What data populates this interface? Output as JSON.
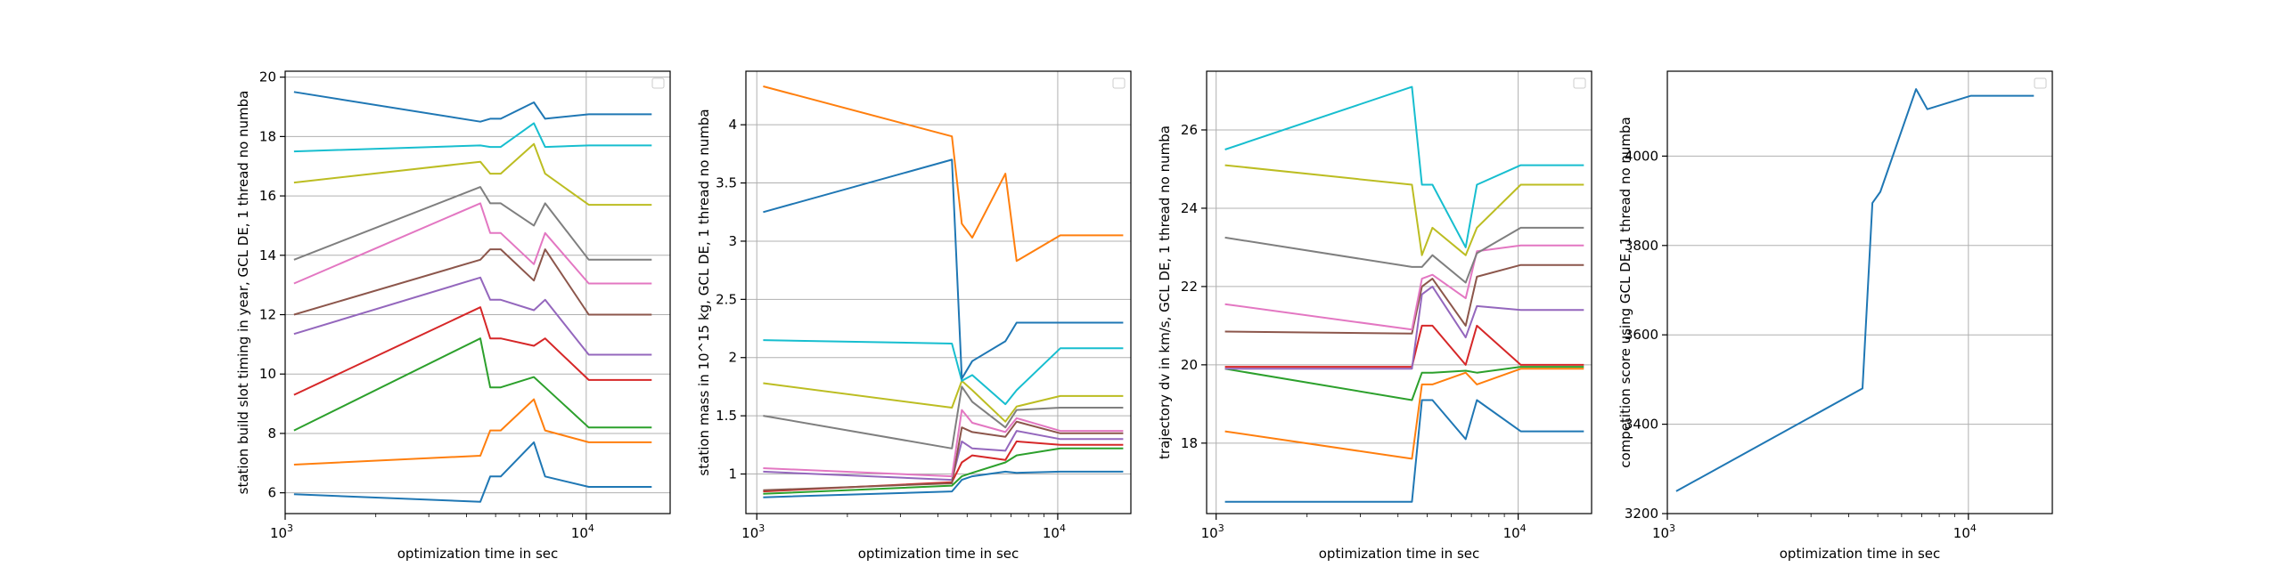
{
  "chart_data": [
    {
      "type": "line",
      "xlabel": "optimization time in sec",
      "ylabel": "station build slot timing in year, GCL DE, 1 thread no numba",
      "xscale": "log",
      "xlim": [
        1000,
        19000
      ],
      "ylim": [
        5.3,
        20.2
      ],
      "xticks": [
        {
          "v": 1000,
          "base": "10",
          "exp": "3"
        },
        {
          "v": 10000,
          "base": "10",
          "exp": "4"
        }
      ],
      "yticks": [
        6,
        8,
        10,
        12,
        14,
        16,
        18,
        20
      ],
      "grid": true,
      "legend": "top-right (empty)",
      "x": [
        1070,
        4450,
        4800,
        5200,
        6700,
        7300,
        10200,
        16500
      ],
      "series": [
        {
          "color": "#1f77b4",
          "values": [
            5.95,
            5.7,
            6.55,
            6.55,
            7.7,
            6.55,
            6.2,
            6.2
          ]
        },
        {
          "color": "#ff7f0e",
          "values": [
            6.95,
            7.25,
            8.1,
            8.1,
            9.15,
            8.1,
            7.7,
            7.7
          ]
        },
        {
          "color": "#2ca02c",
          "values": [
            8.1,
            11.2,
            9.55,
            9.55,
            9.9,
            9.55,
            8.2,
            8.2
          ]
        },
        {
          "color": "#d62728",
          "values": [
            9.3,
            12.25,
            11.2,
            11.2,
            10.95,
            11.2,
            9.8,
            9.8
          ]
        },
        {
          "color": "#9467bd",
          "values": [
            11.35,
            13.25,
            12.5,
            12.5,
            12.15,
            12.5,
            10.65,
            10.65
          ]
        },
        {
          "color": "#8c564b",
          "values": [
            12.0,
            13.85,
            14.2,
            14.2,
            13.15,
            14.2,
            12.0,
            12.0
          ]
        },
        {
          "color": "#e377c2",
          "values": [
            13.05,
            15.75,
            14.75,
            14.75,
            13.7,
            14.75,
            13.05,
            13.05
          ]
        },
        {
          "color": "#7f7f7f",
          "values": [
            13.85,
            16.3,
            15.75,
            15.75,
            15.0,
            15.75,
            13.85,
            13.85
          ]
        },
        {
          "color": "#bcbd22",
          "values": [
            16.45,
            17.15,
            16.75,
            16.75,
            17.75,
            16.75,
            15.7,
            15.7
          ]
        },
        {
          "color": "#17becf",
          "values": [
            17.5,
            17.7,
            17.65,
            17.65,
            18.45,
            17.65,
            17.7,
            17.7
          ]
        },
        {
          "color": "#1f77b4",
          "values": [
            19.5,
            18.5,
            18.6,
            18.6,
            19.15,
            18.6,
            18.75,
            18.75
          ]
        }
      ]
    },
    {
      "type": "line",
      "xlabel": "optimization time in sec",
      "ylabel": "station mass in 10^15 kg, GCL DE, 1 thread no numba",
      "xscale": "log",
      "xlim": [
        920,
        17500
      ],
      "ylim": [
        0.66,
        4.46
      ],
      "xticks": [
        {
          "v": 1000,
          "base": "10",
          "exp": "3"
        },
        {
          "v": 10000,
          "base": "10",
          "exp": "4"
        }
      ],
      "yticks": [
        1.0,
        1.5,
        2.0,
        2.5,
        3.0,
        3.5,
        4.0
      ],
      "grid": true,
      "legend": "top-right (empty)",
      "x": [
        1050,
        4450,
        4800,
        5200,
        6700,
        7300,
        10200,
        16500
      ],
      "series": [
        {
          "color": "#1f77b4",
          "values": [
            0.8,
            0.85,
            0.95,
            0.98,
            1.02,
            1.01,
            1.02,
            1.02
          ]
        },
        {
          "color": "#ff7f0e",
          "values": [
            4.33,
            3.9,
            3.15,
            3.03,
            3.58,
            2.83,
            3.05,
            3.05
          ]
        },
        {
          "color": "#2ca02c",
          "values": [
            0.83,
            0.9,
            0.98,
            1.01,
            1.1,
            1.16,
            1.22,
            1.22
          ]
        },
        {
          "color": "#d62728",
          "values": [
            0.85,
            0.93,
            1.1,
            1.16,
            1.12,
            1.28,
            1.25,
            1.25
          ]
        },
        {
          "color": "#9467bd",
          "values": [
            1.02,
            0.95,
            1.28,
            1.22,
            1.2,
            1.37,
            1.3,
            1.3
          ]
        },
        {
          "color": "#8c564b",
          "values": [
            0.86,
            0.92,
            1.4,
            1.36,
            1.32,
            1.45,
            1.35,
            1.35
          ]
        },
        {
          "color": "#e377c2",
          "values": [
            1.05,
            0.98,
            1.55,
            1.44,
            1.36,
            1.48,
            1.37,
            1.37
          ]
        },
        {
          "color": "#7f7f7f",
          "values": [
            1.5,
            1.22,
            1.75,
            1.62,
            1.4,
            1.55,
            1.57,
            1.57
          ]
        },
        {
          "color": "#bcbd22",
          "values": [
            1.78,
            1.57,
            1.8,
            1.72,
            1.45,
            1.58,
            1.67,
            1.67
          ]
        },
        {
          "color": "#17becf",
          "values": [
            2.15,
            2.12,
            1.8,
            1.85,
            1.6,
            1.72,
            2.08,
            2.08
          ]
        },
        {
          "color": "#1f77b4",
          "values": [
            3.25,
            3.7,
            1.82,
            1.97,
            2.14,
            2.3,
            2.3,
            2.3
          ]
        }
      ]
    },
    {
      "type": "line",
      "xlabel": "optimization time in sec",
      "ylabel": "trajectory dv in km/s, GCL DE, 1 thread no numba",
      "xscale": "log",
      "xlim": [
        930,
        17500
      ],
      "ylim": [
        16.2,
        27.5
      ],
      "xticks": [
        {
          "v": 1000,
          "base": "10",
          "exp": "3"
        },
        {
          "v": 10000,
          "base": "10",
          "exp": "4"
        }
      ],
      "yticks": [
        18,
        20,
        22,
        24,
        26
      ],
      "grid": true,
      "legend": "top-right (empty)",
      "x": [
        1070,
        4450,
        4800,
        5200,
        6700,
        7300,
        10200,
        16500
      ],
      "series": [
        {
          "color": "#1f77b4",
          "values": [
            16.5,
            16.5,
            19.1,
            19.1,
            18.1,
            19.1,
            18.3,
            18.3
          ]
        },
        {
          "color": "#ff7f0e",
          "values": [
            18.3,
            17.6,
            19.5,
            19.5,
            19.8,
            19.5,
            19.9,
            19.9
          ]
        },
        {
          "color": "#2ca02c",
          "values": [
            19.9,
            19.1,
            19.8,
            19.8,
            19.85,
            19.8,
            19.95,
            19.95
          ]
        },
        {
          "color": "#d62728",
          "values": [
            19.95,
            19.95,
            21.0,
            21.0,
            20.0,
            21.0,
            20.0,
            20.0
          ]
        },
        {
          "color": "#9467bd",
          "values": [
            19.9,
            19.9,
            21.8,
            22.0,
            20.7,
            21.5,
            21.4,
            21.4
          ]
        },
        {
          "color": "#8c564b",
          "values": [
            20.85,
            20.8,
            22.0,
            22.2,
            21.0,
            22.25,
            22.55,
            22.55
          ]
        },
        {
          "color": "#e377c2",
          "values": [
            21.55,
            20.9,
            22.2,
            22.3,
            21.7,
            22.9,
            23.05,
            23.05
          ]
        },
        {
          "color": "#7f7f7f",
          "values": [
            23.25,
            22.5,
            22.5,
            22.8,
            22.1,
            22.85,
            23.5,
            23.5
          ]
        },
        {
          "color": "#bcbd22",
          "values": [
            25.1,
            24.6,
            22.8,
            23.5,
            22.8,
            23.5,
            24.6,
            24.6
          ]
        },
        {
          "color": "#17becf",
          "values": [
            25.5,
            27.1,
            24.6,
            24.6,
            23.0,
            24.6,
            25.1,
            25.1
          ]
        }
      ]
    },
    {
      "type": "line",
      "xlabel": "optimization time in sec",
      "ylabel": "competition score using GCL DE, 1 thread no numba",
      "xscale": "log",
      "xlim": [
        1000,
        19000
      ],
      "ylim": [
        3200,
        4190
      ],
      "xticks": [
        {
          "v": 1000,
          "base": "10",
          "exp": "3"
        },
        {
          "v": 10000,
          "base": "10",
          "exp": "4"
        }
      ],
      "yticks": [
        3200,
        3400,
        3600,
        3800,
        4000
      ],
      "grid": true,
      "legend": "top-right (empty)",
      "x": [
        1070,
        4450,
        4800,
        5100,
        6700,
        7300,
        10200,
        16500
      ],
      "series": [
        {
          "color": "#1f77b4",
          "values": [
            3250,
            3480,
            3895,
            3920,
            4150,
            4105,
            4135,
            4135
          ]
        }
      ]
    }
  ]
}
